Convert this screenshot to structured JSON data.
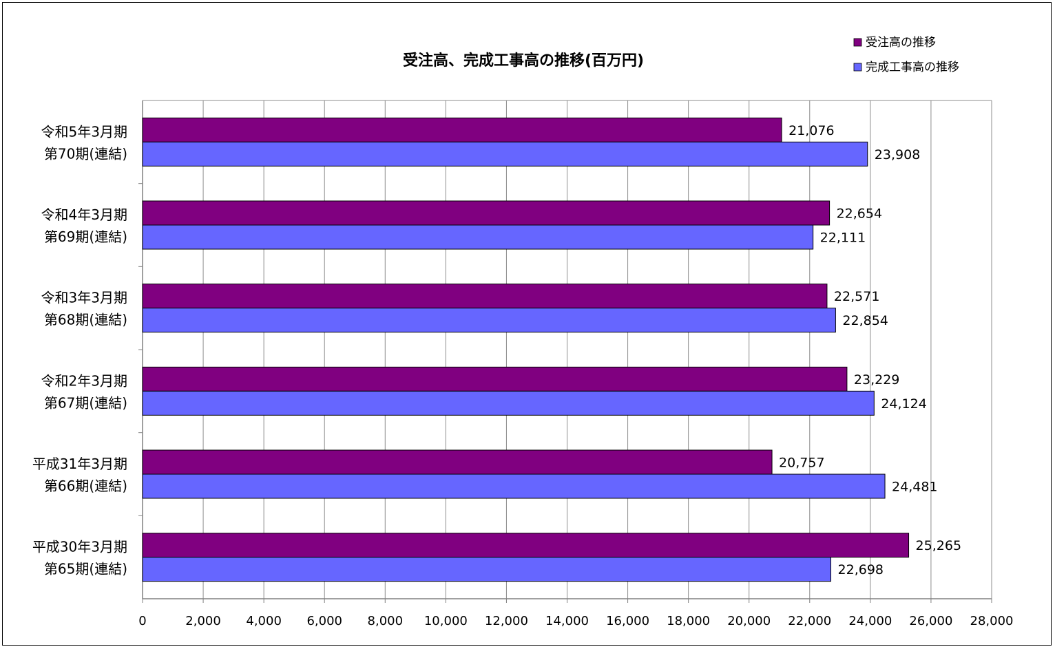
{
  "chart_data": {
    "type": "bar",
    "orientation": "horizontal",
    "title": "受注高、完成工事高の推移(百万円)",
    "categories": [
      [
        "令和5年3月期",
        "第70期(連結)"
      ],
      [
        "令和4年3月期",
        "第69期(連結)"
      ],
      [
        "令和3年3月期",
        "第68期(連結)"
      ],
      [
        "令和2年3月期",
        "第67期(連結)"
      ],
      [
        "平成31年3月期",
        "第66期(連結)"
      ],
      [
        "平成30年3月期",
        "第65期(連結)"
      ]
    ],
    "series": [
      {
        "name": "受注高の推移",
        "color": "#800080",
        "values": [
          21076,
          22654,
          22571,
          23229,
          20757,
          25265
        ],
        "labels": [
          "21,076",
          "22,654",
          "22,571",
          "23,229",
          "20,757",
          "25,265"
        ]
      },
      {
        "name": "完成工事高の推移",
        "color": "#6666ff",
        "values": [
          23908,
          22111,
          22854,
          24124,
          24481,
          22698
        ],
        "labels": [
          "23,908",
          "22,111",
          "22,854",
          "24,124",
          "24,481",
          "22,698"
        ]
      }
    ],
    "xlim": [
      0,
      28000
    ],
    "xticks": [
      0,
      2000,
      4000,
      6000,
      8000,
      10000,
      12000,
      14000,
      16000,
      18000,
      20000,
      22000,
      24000,
      26000,
      28000
    ],
    "xtick_labels": [
      "0",
      "2,000",
      "4,000",
      "6,000",
      "8,000",
      "10,000",
      "12,000",
      "14,000",
      "16,000",
      "18,000",
      "20,000",
      "22,000",
      "24,000",
      "26,000",
      "28,000"
    ],
    "grid": true,
    "legend_position": "top-right"
  }
}
